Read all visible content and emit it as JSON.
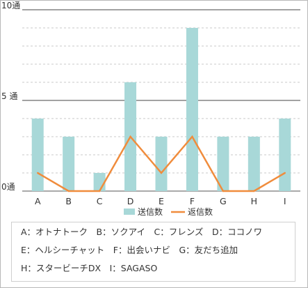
{
  "chart_data": {
    "type": "bar",
    "categories": [
      "A",
      "B",
      "C",
      "D",
      "E",
      "F",
      "G",
      "H",
      "I"
    ],
    "series": [
      {
        "name": "送信数",
        "type": "bar",
        "color": "#a8d8d8",
        "values": [
          4,
          3,
          1,
          6,
          3,
          9,
          3,
          3,
          4
        ]
      },
      {
        "name": "返信数",
        "type": "line",
        "color": "#f08c3c",
        "values": [
          1,
          0,
          0,
          3,
          1,
          3,
          0,
          0,
          1
        ]
      }
    ],
    "y_ticks": [
      {
        "value": 0,
        "label": "0通"
      },
      {
        "value": 5,
        "label": "5 通"
      },
      {
        "value": 10,
        "label": "10通"
      }
    ],
    "ylim": [
      0,
      10
    ],
    "grid": "major solid, minor dashed",
    "legend_position": "bottom"
  },
  "legend_notes": [
    "A：オトナトーク　B：ソクアイ　C：フレンズ　D：ココノワ",
    "E：ヘルシーチャット　F：出会いナビ　G：友だち追加",
    "H：スタービーチDX　I：SAGASO"
  ]
}
